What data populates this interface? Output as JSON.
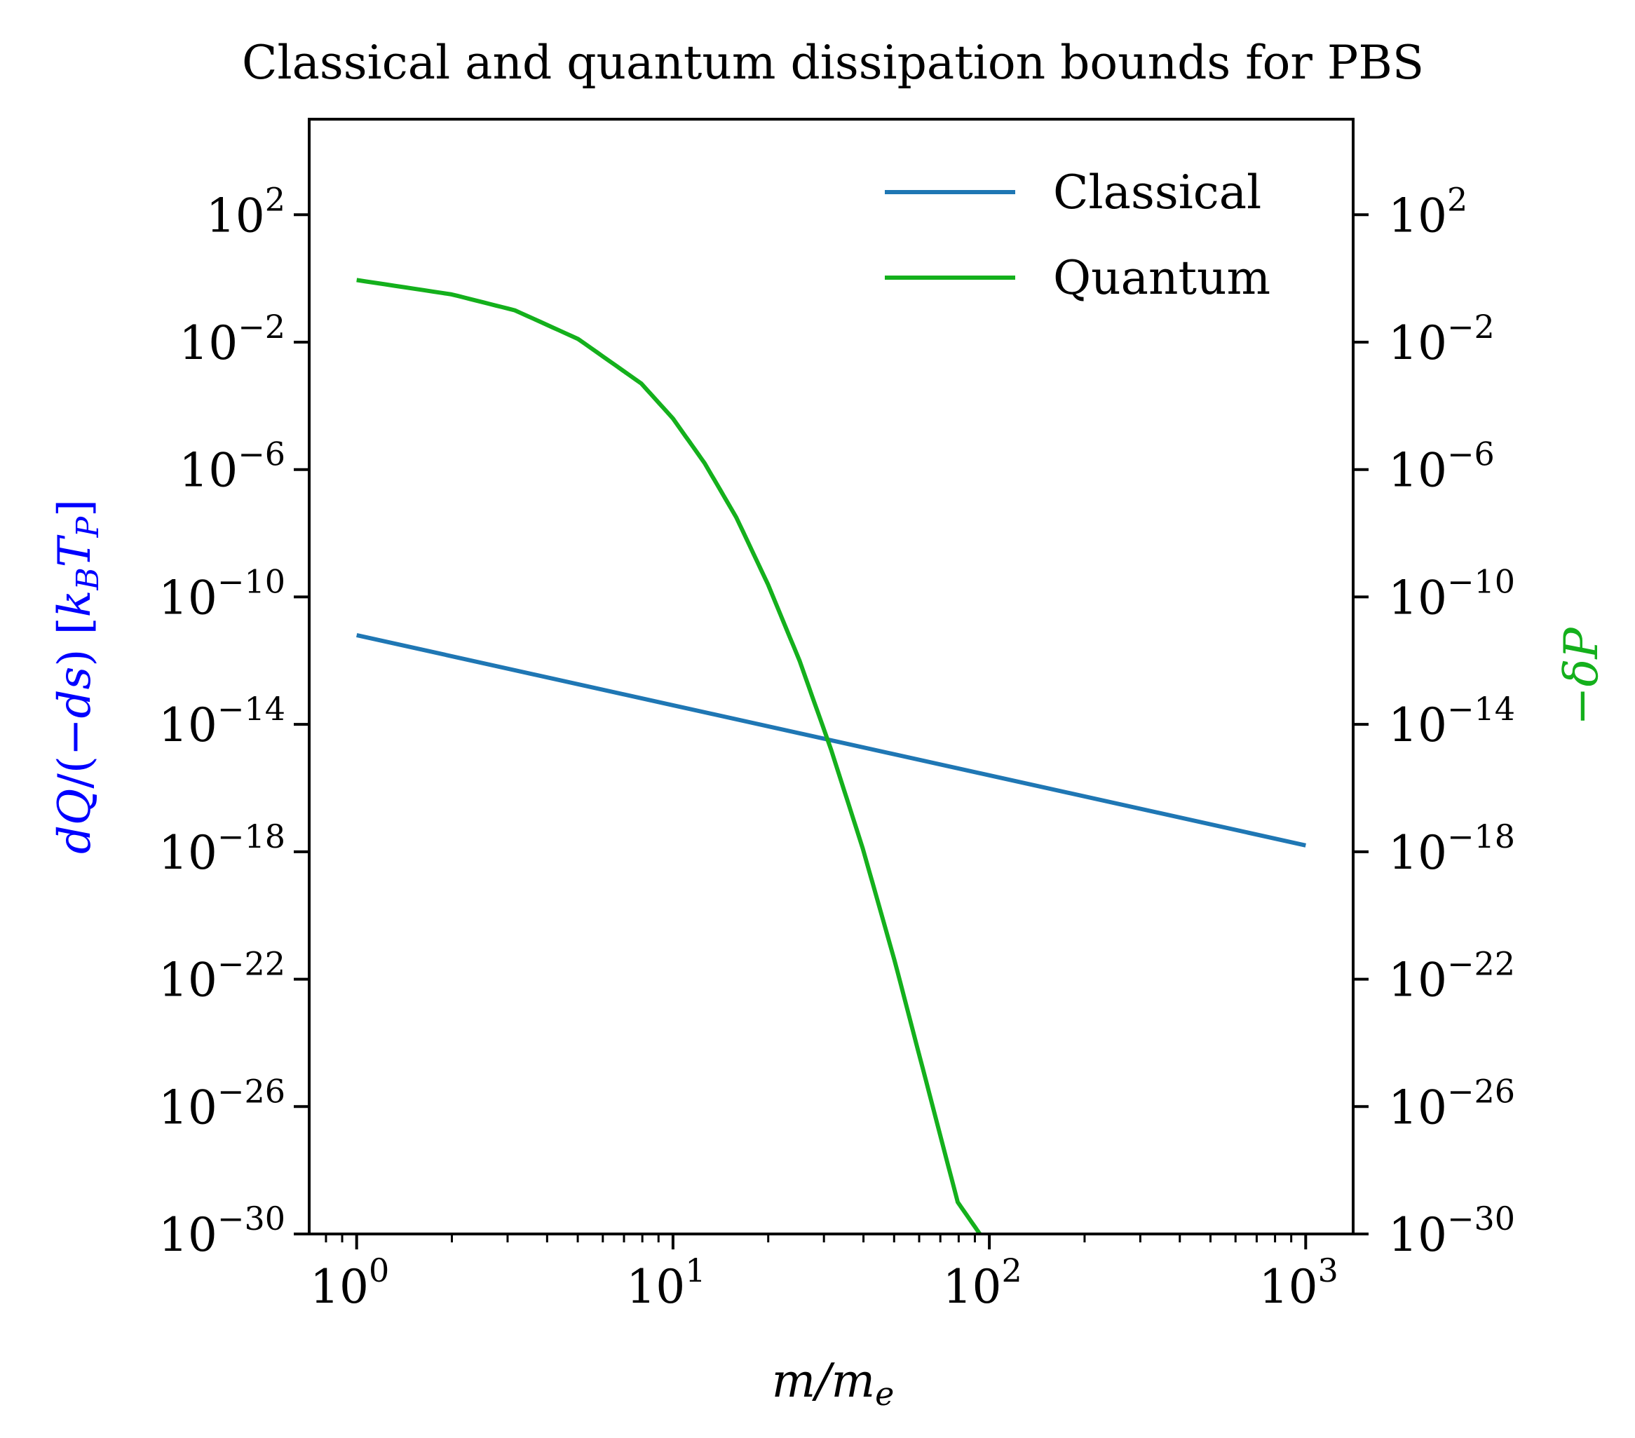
{
  "chart_data": {
    "type": "line",
    "title": "Classical and quantum dissipation bounds for PBS",
    "xlabel": "m/m_e",
    "ylabel_left": "dQ/(−ds) [k_B T_P]",
    "ylabel_right": "−δP",
    "xscale": "log",
    "yscale": "log",
    "xlim_log10": [
      -0.15,
      3.15
    ],
    "ylim_log10": [
      -30,
      5
    ],
    "x_ticks_log10": [
      0,
      1,
      2,
      3
    ],
    "y_ticks_log10": [
      2,
      -2,
      -6,
      -10,
      -14,
      -18,
      -22,
      -26,
      -30
    ],
    "tick_base": "10",
    "x_tick_exps": [
      "0",
      "1",
      "2",
      "3"
    ],
    "y_tick_exps": [
      "2",
      "−2",
      "−6",
      "−10",
      "−14",
      "−18",
      "−22",
      "−26",
      "−30"
    ],
    "series": [
      {
        "name": "Classical",
        "color": "#1f77b4",
        "log10_x": [
          0,
          1,
          2,
          3
        ],
        "log10_y": [
          -11.2,
          -13.4,
          -15.6,
          -17.8
        ]
      },
      {
        "name": "Quantum",
        "color": "#14b01c",
        "log10_x": [
          0,
          0.3,
          0.5,
          0.7,
          0.9,
          1.0,
          1.1,
          1.2,
          1.3,
          1.4,
          1.5,
          1.6,
          1.7,
          1.8,
          1.9,
          1.97
        ],
        "log10_y": [
          -0.05,
          -0.5,
          -1.0,
          -1.9,
          -3.3,
          -4.4,
          -5.8,
          -7.5,
          -9.6,
          -12.0,
          -14.8,
          -17.9,
          -21.4,
          -25.2,
          -29.0,
          -30.0
        ]
      }
    ],
    "legend": [
      "Classical",
      "Quantum"
    ],
    "legend_position": "top-right",
    "ylabel_left_color": "#0000ff",
    "ylabel_right_color": "#14b01c",
    "grid": false
  }
}
